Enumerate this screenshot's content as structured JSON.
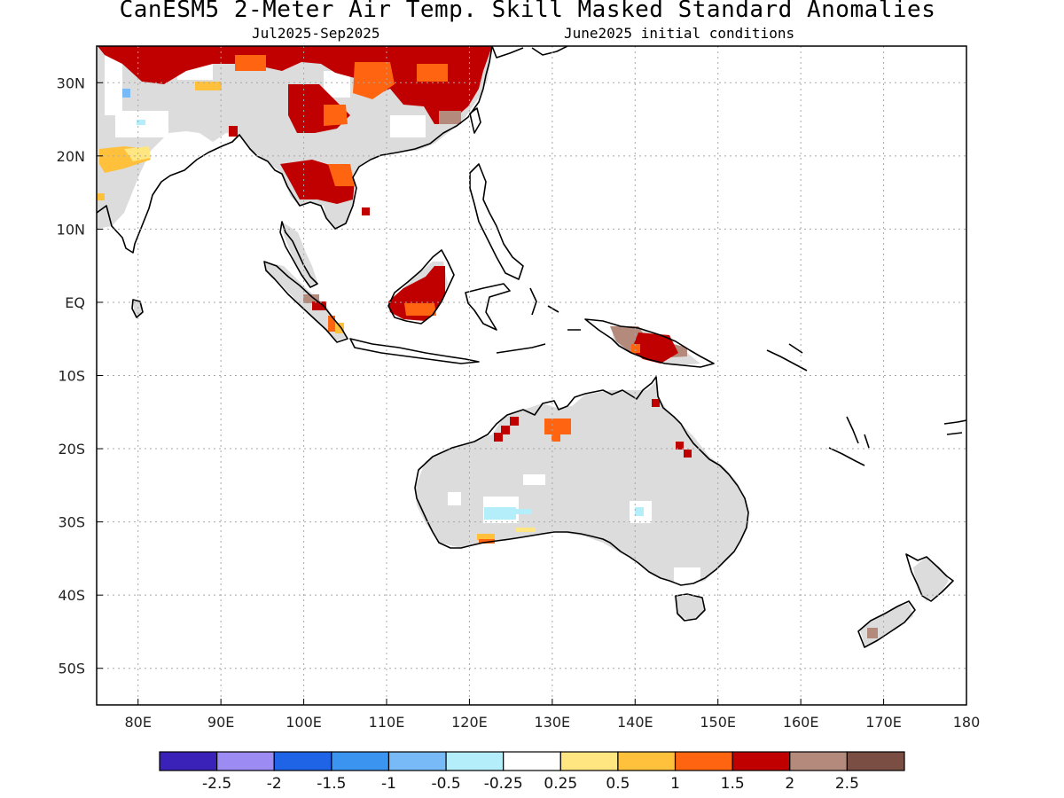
{
  "title": "CanESM5 2-Meter Air Temp. Skill Masked Standard Anomalies",
  "subtitle_left": "Jul2025-Sep2025",
  "subtitle_right": "June2025 initial conditions",
  "map": {
    "lon_range": [
      75,
      180
    ],
    "lat_range": [
      -55,
      35
    ],
    "lat_ticks": [
      {
        "value": 30,
        "label": "30N"
      },
      {
        "value": 20,
        "label": "20N"
      },
      {
        "value": 10,
        "label": "10N"
      },
      {
        "value": 0,
        "label": "EQ"
      },
      {
        "value": -10,
        "label": "10S"
      },
      {
        "value": -20,
        "label": "20S"
      },
      {
        "value": -30,
        "label": "30S"
      },
      {
        "value": -40,
        "label": "40S"
      },
      {
        "value": -50,
        "label": "50S"
      }
    ],
    "lon_ticks": [
      {
        "value": 80,
        "label": "80E"
      },
      {
        "value": 90,
        "label": "90E"
      },
      {
        "value": 100,
        "label": "100E"
      },
      {
        "value": 110,
        "label": "110E"
      },
      {
        "value": 120,
        "label": "120E"
      },
      {
        "value": 130,
        "label": "130E"
      },
      {
        "value": 140,
        "label": "140E"
      },
      {
        "value": 150,
        "label": "150E"
      },
      {
        "value": 160,
        "label": "160E"
      },
      {
        "value": 170,
        "label": "170E"
      },
      {
        "value": 180,
        "label": "180"
      }
    ],
    "grid": "dotted"
  },
  "colorbar": {
    "colors": [
      "#3a22b8",
      "#9b8bf3",
      "#1f63e6",
      "#3a94f0",
      "#78baf7",
      "#b4eefa",
      "#ffffff",
      "#ffe680",
      "#ffc03c",
      "#ff6410",
      "#c00000",
      "#b48a7c",
      "#7a4e42"
    ],
    "labels": [
      "-2.5",
      "-2",
      "-1.5",
      "-1",
      "-0.5",
      "-0.25",
      "0.25",
      "0.5",
      "1",
      "1.5",
      "2",
      "2.5"
    ]
  },
  "colors": {
    "masked_land": "#dcdcdc",
    "coastline": "#000000",
    "grid": "#a8a8a8"
  }
}
